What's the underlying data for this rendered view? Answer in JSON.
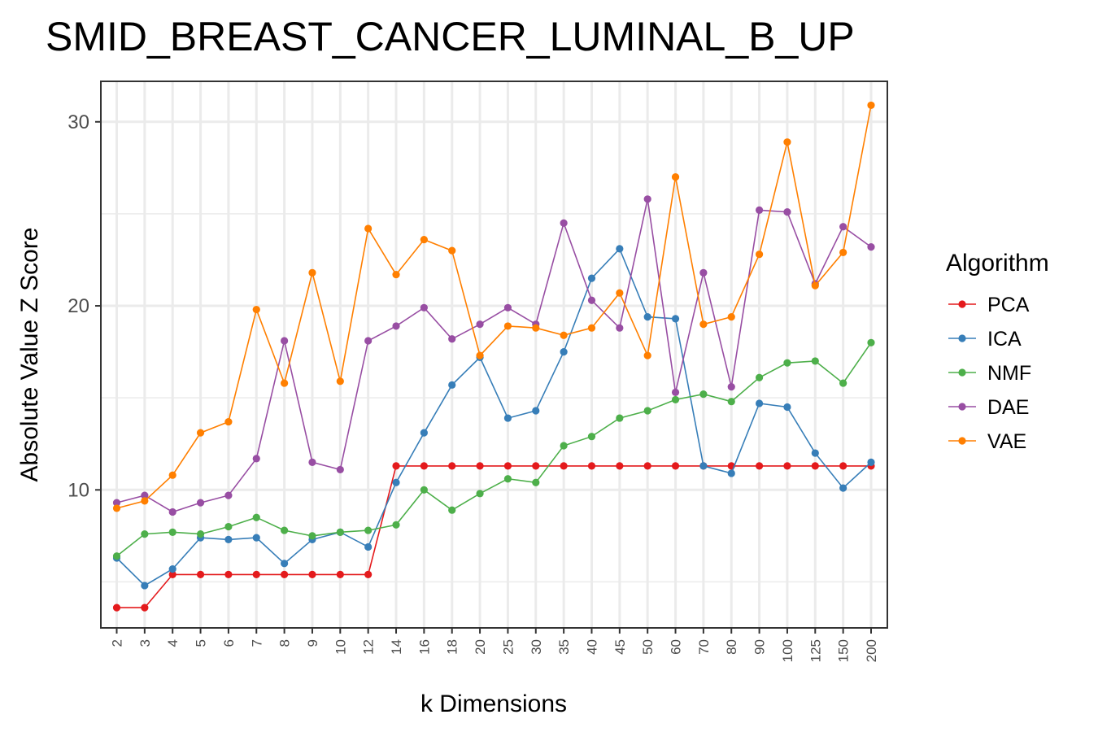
{
  "chart_data": {
    "type": "line",
    "title": "SMID_BREAST_CANCER_LUMINAL_B_UP",
    "xlabel": "k Dimensions",
    "ylabel": "Absolute Value Z Score",
    "categories": [
      "2",
      "3",
      "4",
      "5",
      "6",
      "7",
      "8",
      "9",
      "10",
      "12",
      "14",
      "16",
      "18",
      "20",
      "25",
      "30",
      "35",
      "40",
      "45",
      "50",
      "60",
      "70",
      "80",
      "90",
      "100",
      "125",
      "150",
      "200"
    ],
    "ylim": [
      2.5,
      32.2
    ],
    "yticks": [
      10,
      20,
      30
    ],
    "grid": true,
    "legend": {
      "title": "Algorithm",
      "position": "right"
    },
    "series": [
      {
        "name": "PCA",
        "color": "#e41a1c",
        "values": [
          3.6,
          3.6,
          5.4,
          5.4,
          5.4,
          5.4,
          5.4,
          5.4,
          5.4,
          5.4,
          11.3,
          11.3,
          11.3,
          11.3,
          11.3,
          11.3,
          11.3,
          11.3,
          11.3,
          11.3,
          11.3,
          11.3,
          11.3,
          11.3,
          11.3,
          11.3,
          11.3,
          11.3
        ]
      },
      {
        "name": "ICA",
        "color": "#377eb8",
        "values": [
          6.3,
          4.8,
          5.7,
          7.4,
          7.3,
          7.4,
          6.0,
          7.3,
          7.7,
          6.9,
          10.4,
          13.1,
          15.7,
          17.2,
          13.9,
          14.3,
          17.5,
          21.5,
          23.1,
          19.4,
          19.3,
          11.3,
          10.9,
          14.7,
          14.5,
          12.0,
          10.1,
          11.5
        ]
      },
      {
        "name": "NMF",
        "color": "#4daf4a",
        "values": [
          6.4,
          7.6,
          7.7,
          7.6,
          8.0,
          8.5,
          7.8,
          7.5,
          7.7,
          7.8,
          8.1,
          10.0,
          8.9,
          9.8,
          10.6,
          10.4,
          12.4,
          12.9,
          13.9,
          14.3,
          14.9,
          15.2,
          14.8,
          16.1,
          16.9,
          17.0,
          15.8,
          18.0
        ]
      },
      {
        "name": "DAE",
        "color": "#984ea3",
        "values": [
          9.3,
          9.7,
          8.8,
          9.3,
          9.7,
          11.7,
          18.1,
          11.5,
          11.1,
          18.1,
          18.9,
          19.9,
          18.2,
          19.0,
          19.9,
          19.0,
          24.5,
          20.3,
          18.8,
          25.8,
          15.3,
          21.8,
          15.6,
          25.2,
          25.1,
          21.2,
          24.3,
          23.2
        ]
      },
      {
        "name": "VAE",
        "color": "#ff7f00",
        "values": [
          9.0,
          9.4,
          10.8,
          13.1,
          13.7,
          19.8,
          15.8,
          21.8,
          15.9,
          24.2,
          21.7,
          23.6,
          23.0,
          17.3,
          18.9,
          18.8,
          18.4,
          18.8,
          20.7,
          17.3,
          27.0,
          19.0,
          19.4,
          22.8,
          28.9,
          21.1,
          22.9,
          30.9
        ]
      }
    ]
  }
}
